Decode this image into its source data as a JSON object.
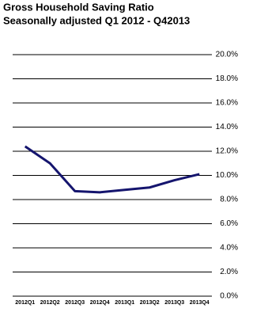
{
  "chart_data": {
    "type": "line",
    "title": "Gross  Household  Saving Ratio",
    "subtitle": "Seasonally adjusted  Q1 2012 - Q42013",
    "categories": [
      "2012Q1",
      "2012Q2",
      "2012Q3",
      "2012Q4",
      "2013Q1",
      "2013Q2",
      "2013Q3",
      "2013Q4"
    ],
    "series": [
      {
        "name": "Gross Household Saving Ratio",
        "color": "#15156e",
        "values": [
          12.4,
          11.0,
          8.7,
          8.6,
          8.8,
          9.0,
          9.6,
          10.1
        ]
      }
    ],
    "ylim": [
      0,
      20
    ],
    "yticks": [
      {
        "value": 0,
        "label": "0.0%"
      },
      {
        "value": 2,
        "label": "2.0%"
      },
      {
        "value": 4,
        "label": "4.0%"
      },
      {
        "value": 6,
        "label": "6.0%"
      },
      {
        "value": 8,
        "label": "8.0%"
      },
      {
        "value": 10,
        "label": "10.0%"
      },
      {
        "value": 12,
        "label": "12.0%"
      },
      {
        "value": 14,
        "label": "14.0%"
      },
      {
        "value": 16,
        "label": "16.0%"
      },
      {
        "value": 18,
        "label": "18.0%"
      },
      {
        "value": 20,
        "label": "20.0%"
      }
    ],
    "grid": true
  }
}
